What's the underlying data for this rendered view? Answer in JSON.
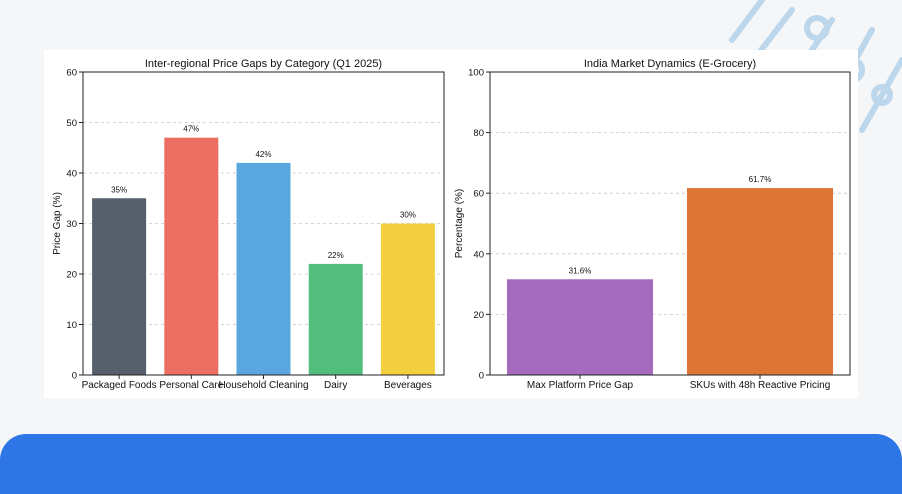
{
  "chart_data": [
    {
      "type": "bar",
      "title": "Inter-regional Price Gaps by Category (Q1 2025)",
      "xlabel": "",
      "ylabel": "Price Gap (%)",
      "categories": [
        "Packaged Foods",
        "Personal Care",
        "Household Cleaning",
        "Dairy",
        "Beverages"
      ],
      "values": [
        35,
        47,
        42,
        22,
        30
      ],
      "data_labels": [
        "35%",
        "47%",
        "42%",
        "22%",
        "30%"
      ],
      "colors": [
        "#56606c",
        "#ec6e62",
        "#5aa7e0",
        "#52bd7c",
        "#f2cf3e"
      ],
      "ylim": [
        0,
        60
      ],
      "yticks": [
        0,
        10,
        20,
        30,
        40,
        50,
        60
      ],
      "grid": "y-dashed"
    },
    {
      "type": "bar",
      "title": "India Market Dynamics (E-Grocery)",
      "xlabel": "",
      "ylabel": "Percentage (%)",
      "categories": [
        "Max Platform Price Gap",
        "SKUs with 48h Reactive Pricing"
      ],
      "values": [
        31.6,
        61.7
      ],
      "data_labels": [
        "31.6%",
        "61.7%"
      ],
      "colors": [
        "#a46bbf",
        "#dd7534"
      ],
      "ylim": [
        0,
        100
      ],
      "yticks": [
        0,
        20,
        40,
        60,
        80,
        100
      ],
      "grid": "y-dashed"
    }
  ]
}
